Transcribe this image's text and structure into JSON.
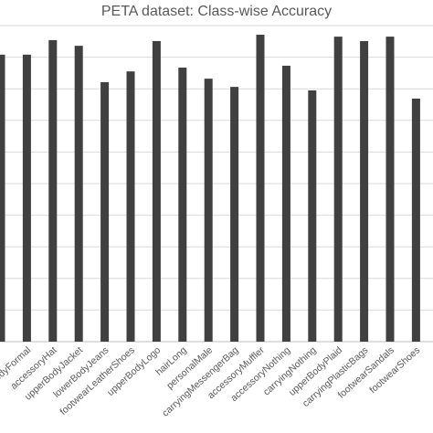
{
  "chart_data": {
    "type": "bar",
    "title": "PETA dataset: Class-wise Accuracy",
    "categories": [
      null,
      "upperBodyFormal",
      "accessoryHat",
      "upperBodyJacket",
      "lowerBodyJeans",
      "footwearLeatherShoes",
      "upperBodyLogo",
      "hairLong",
      "personalMale",
      "carryingMessengerBag",
      "accessoryMuffler",
      "accessoryNothing",
      "carryingNothing",
      "upperBodyPlaid",
      "carryingPlasticBags",
      "footwearSandals",
      "footwearShoes"
    ],
    "values": [
      90.8,
      90.8,
      95.4,
      93.6,
      82.1,
      85.5,
      95.1,
      86.7,
      83.2,
      80.6,
      97.1,
      87.3,
      79.5,
      96.5,
      95.1,
      96.5,
      76.9
    ],
    "color": "#404040",
    "ylim": [
      0,
      100
    ],
    "yticks": [
      0,
      10,
      20,
      30,
      40,
      50,
      60,
      70,
      80,
      90,
      100
    ],
    "grid": true
  }
}
